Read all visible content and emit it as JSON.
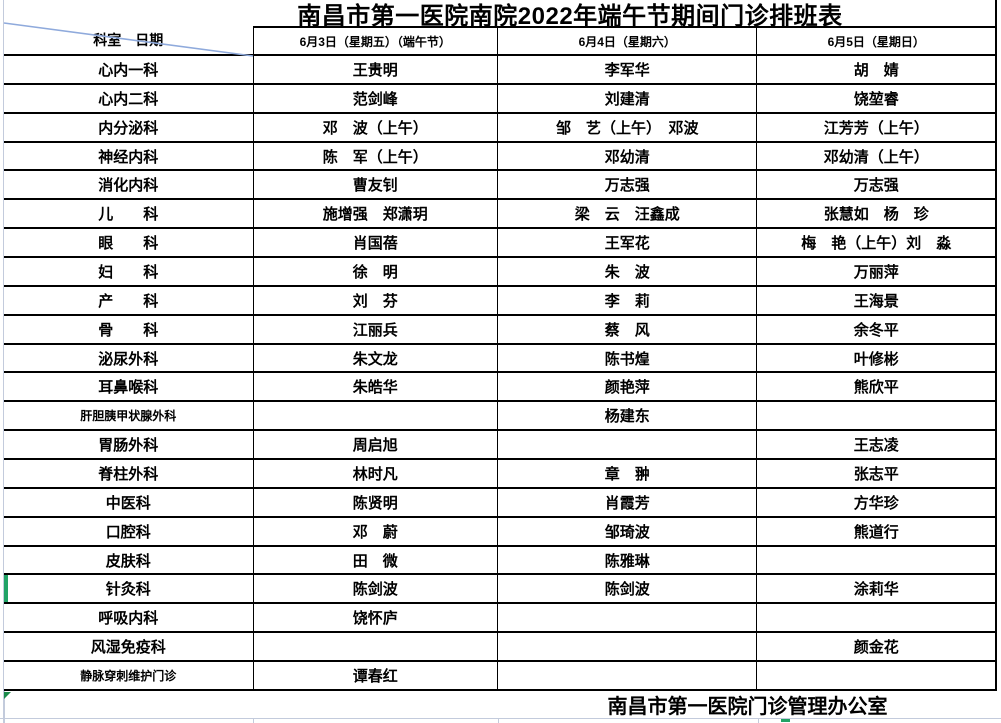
{
  "title": "南昌市第一医院南院2022年端午节期间门诊排班表",
  "corner_label": "科室　日期",
  "columns": [
    "6月3日（星期五）（端午节）",
    "6月4日（星期六）",
    "6月5日（星期日）"
  ],
  "rows": [
    {
      "dept": "心内一科",
      "cells": [
        "王贵明",
        "李军华",
        "胡　婧"
      ]
    },
    {
      "dept": "心内二科",
      "cells": [
        "范剑峰",
        "刘建清",
        "饶堃睿"
      ]
    },
    {
      "dept": "内分泌科",
      "cells": [
        "邓　波（上午）",
        "邹　艺（上午）　邓波",
        "江芳芳（上午）"
      ]
    },
    {
      "dept": "神经内科",
      "cells": [
        "陈　军（上午）",
        "邓幼清",
        "邓幼清（上午）"
      ]
    },
    {
      "dept": "消化内科",
      "cells": [
        "曹友钊",
        "万志强",
        "万志强"
      ]
    },
    {
      "dept": "儿　　科",
      "cells": [
        "施增强　郑潇玥",
        "梁　云　汪鑫成",
        "张慧如　杨　珍"
      ]
    },
    {
      "dept": "眼　　科",
      "cells": [
        "肖国蓓",
        "王军花",
        "梅　艳（上午）刘　淼"
      ]
    },
    {
      "dept": "妇　　科",
      "cells": [
        "徐　明",
        "朱　波",
        "万丽萍"
      ]
    },
    {
      "dept": "产　　科",
      "cells": [
        "刘　芬",
        "李　莉",
        "王海景"
      ]
    },
    {
      "dept": "骨　　科",
      "cells": [
        "江丽兵",
        "蔡　风",
        "余冬平"
      ]
    },
    {
      "dept": "泌尿外科",
      "cells": [
        "朱文龙",
        "陈书煌",
        "叶修彬"
      ]
    },
    {
      "dept": "耳鼻喉科",
      "cells": [
        "朱皓华",
        "颜艳萍",
        "熊欣平"
      ]
    },
    {
      "dept": "肝胆胰甲状腺外科",
      "small": true,
      "cells": [
        "",
        "杨建东",
        ""
      ]
    },
    {
      "dept": "胃肠外科",
      "cells": [
        "周启旭",
        "",
        "王志凌"
      ]
    },
    {
      "dept": "脊柱外科",
      "cells": [
        "林时凡",
        "章　翀",
        "张志平"
      ]
    },
    {
      "dept": "中医科",
      "cells": [
        "陈贤明",
        "肖霞芳",
        "方华珍"
      ]
    },
    {
      "dept": "口腔科",
      "cells": [
        "邓　蔚",
        "邹琦波",
        "熊道行"
      ]
    },
    {
      "dept": "皮肤科",
      "cells": [
        "田　微",
        "陈雅琳",
        ""
      ]
    },
    {
      "dept": "针灸科",
      "green_marker": true,
      "cells": [
        "陈剑波",
        "陈剑波",
        "涂莉华"
      ]
    },
    {
      "dept": "呼吸内科",
      "cells": [
        "饶怀庐",
        "",
        ""
      ]
    },
    {
      "dept": "风湿免疫科",
      "cells": [
        "",
        "",
        "颜金花"
      ]
    },
    {
      "dept": "静脉穿刺维护门诊",
      "small": true,
      "cells": [
        "谭春红",
        "",
        ""
      ]
    }
  ],
  "footer": "南昌市第一医院门诊管理办公室",
  "colors": {
    "diagonal_line": "#8faadc",
    "green_marker": "#21a366",
    "green_dark": "#1a8a4a",
    "grid_light": "#c3cbdc",
    "border": "#000000"
  }
}
